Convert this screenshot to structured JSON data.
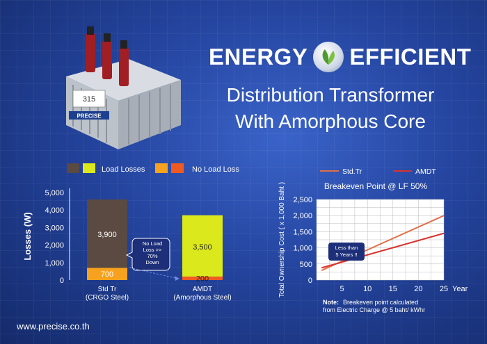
{
  "header": {
    "word1": "ENERGY",
    "word2": "EFFICIENT",
    "subtitle_line1": "Distribution Transformer",
    "subtitle_line2": "With Amorphous Core"
  },
  "product": {
    "brand": "PRECISE",
    "tag": "315"
  },
  "footer": {
    "url": "www.precise.co.th"
  },
  "colors": {
    "load_std": "#5a4a42",
    "load_amdt": "#dbe81c",
    "noload_std": "#f7a21e",
    "noload_amdt": "#ef5a22",
    "line_std": "#e0704a",
    "line_amdt": "#d8322e"
  },
  "chart_data": [
    {
      "type": "bar",
      "stacked": true,
      "legend": [
        {
          "label": "Load Losses"
        },
        {
          "label": "No Load Loss"
        }
      ],
      "categories": [
        "Std Tr\n(CRGO Steel)",
        "AMDT\n(Amorphous Steel)"
      ],
      "series": [
        {
          "name": "No Load Loss",
          "values": [
            700,
            200
          ]
        },
        {
          "name": "Load Losses",
          "values": [
            3900,
            3500
          ]
        }
      ],
      "ylabel": "Losses (W)",
      "ylim": [
        0,
        5000
      ],
      "yticks": [
        "0",
        "1,000",
        "2,000",
        "3,000",
        "4,000",
        "5,000"
      ],
      "annotation": "No Load\nLoss >>\n70%\nDown"
    },
    {
      "type": "line",
      "title": "Breakeven Point @ LF 50%",
      "xlabel": "Year",
      "ylabel": "Total Ownership Cost ( x 1,000 Baht )",
      "xlim": [
        0,
        25
      ],
      "ylim": [
        0,
        2500
      ],
      "xticks": [
        "5",
        "10",
        "15",
        "20",
        "25"
      ],
      "yticks": [
        "0",
        "500",
        "1,000",
        "1,500",
        "2,000",
        "2,500"
      ],
      "grid": true,
      "legend_position": "top",
      "series": [
        {
          "name": "Std.Tr",
          "x": [
            1,
            25
          ],
          "y": [
            300,
            2000
          ]
        },
        {
          "name": "AMDT",
          "x": [
            1,
            25
          ],
          "y": [
            380,
            1450
          ]
        }
      ],
      "callout": "Less than\n5 Years !!",
      "note_label": "Note:",
      "note_text": "Breakeven point calculated\nfrom Electric Charge @ 5 baht/ kWhr"
    }
  ]
}
